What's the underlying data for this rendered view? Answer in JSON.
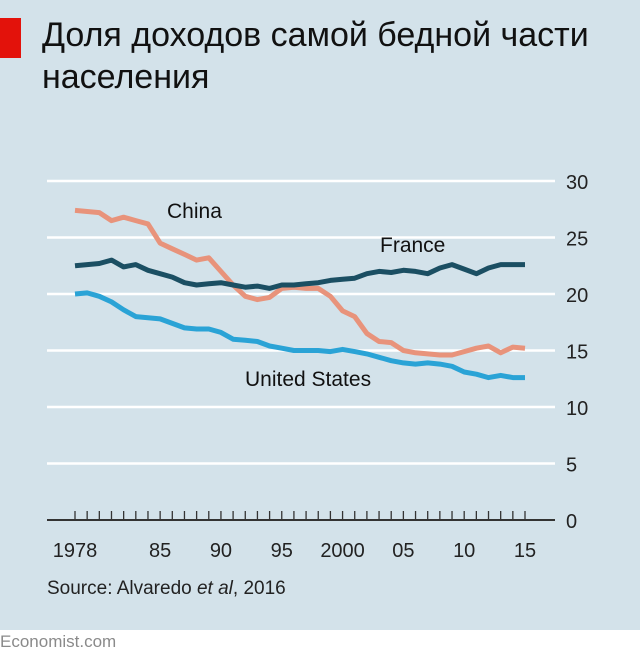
{
  "title": "Доля доходов самой бедной части населения",
  "source": {
    "prefix": "Source: Alvaredo ",
    "italic": "et al",
    "suffix": ", 2016"
  },
  "footer": "Economist.com",
  "colors": {
    "background": "#d3e2ea",
    "accent_red": "#e3120b",
    "china": "#e8937b",
    "france": "#1b4f63",
    "us": "#2aa3d6",
    "grid": "#ffffff",
    "axis": "#333333"
  },
  "chart_data": {
    "type": "line",
    "ylim": [
      0,
      30
    ],
    "xlim": [
      1978,
      2015
    ],
    "y_ticks": [
      {
        "value": 0,
        "label": "0"
      },
      {
        "value": 5,
        "label": "5"
      },
      {
        "value": 10,
        "label": "10"
      },
      {
        "value": 15,
        "label": "15"
      },
      {
        "value": 20,
        "label": "20"
      },
      {
        "value": 25,
        "label": "25"
      },
      {
        "value": 30,
        "label": "30"
      }
    ],
    "x_ticks": [
      {
        "value": 1978,
        "label": "1978"
      },
      {
        "value": 1985,
        "label": "85"
      },
      {
        "value": 1990,
        "label": "90"
      },
      {
        "value": 1995,
        "label": "95"
      },
      {
        "value": 2000,
        "label": "2000"
      },
      {
        "value": 2005,
        "label": "05"
      },
      {
        "value": 2010,
        "label": "10"
      },
      {
        "value": 2015,
        "label": "15"
      }
    ],
    "series": [
      {
        "name": "China",
        "color": "#e8937b",
        "x": [
          1978,
          1979,
          1980,
          1981,
          1982,
          1983,
          1984,
          1985,
          1986,
          1987,
          1988,
          1989,
          1990,
          1991,
          1992,
          1993,
          1994,
          1995,
          1996,
          1997,
          1998,
          1999,
          2000,
          2001,
          2002,
          2003,
          2004,
          2005,
          2006,
          2007,
          2008,
          2009,
          2010,
          2011,
          2012,
          2013,
          2014,
          2015
        ],
        "values": [
          27.4,
          27.3,
          27.2,
          26.5,
          26.8,
          26.5,
          26.2,
          24.5,
          24.0,
          23.5,
          23.0,
          23.2,
          22.0,
          20.8,
          19.8,
          19.5,
          19.7,
          20.5,
          20.6,
          20.5,
          20.5,
          19.8,
          18.5,
          18.0,
          16.5,
          15.8,
          15.7,
          15.0,
          14.8,
          14.7,
          14.6,
          14.6,
          14.9,
          15.2,
          15.4,
          14.8,
          15.3,
          15.2
        ]
      },
      {
        "name": "France",
        "color": "#1b4f63",
        "x": [
          1978,
          1979,
          1980,
          1981,
          1982,
          1983,
          1984,
          1985,
          1986,
          1987,
          1988,
          1989,
          1990,
          1991,
          1992,
          1993,
          1994,
          1995,
          1996,
          1997,
          1998,
          1999,
          2000,
          2001,
          2002,
          2003,
          2004,
          2005,
          2006,
          2007,
          2008,
          2009,
          2010,
          2011,
          2012,
          2013,
          2014,
          2015
        ],
        "values": [
          22.5,
          22.6,
          22.7,
          23.0,
          22.4,
          22.6,
          22.1,
          21.8,
          21.5,
          21.0,
          20.8,
          20.9,
          21.0,
          20.8,
          20.6,
          20.7,
          20.5,
          20.8,
          20.8,
          20.9,
          21.0,
          21.2,
          21.3,
          21.4,
          21.8,
          22.0,
          21.9,
          22.1,
          22.0,
          21.8,
          22.3,
          22.6,
          22.2,
          21.8,
          22.3,
          22.6,
          22.6,
          22.6
        ]
      },
      {
        "name": "United States",
        "color": "#2aa3d6",
        "x": [
          1978,
          1979,
          1980,
          1981,
          1982,
          1983,
          1984,
          1985,
          1986,
          1987,
          1988,
          1989,
          1990,
          1991,
          1992,
          1993,
          1994,
          1995,
          1996,
          1997,
          1998,
          1999,
          2000,
          2001,
          2002,
          2003,
          2004,
          2005,
          2006,
          2007,
          2008,
          2009,
          2010,
          2011,
          2012,
          2013,
          2014,
          2015
        ],
        "values": [
          20.0,
          20.1,
          19.8,
          19.3,
          18.6,
          18.0,
          17.9,
          17.8,
          17.4,
          17.0,
          16.9,
          16.9,
          16.6,
          16.0,
          15.9,
          15.8,
          15.4,
          15.2,
          15.0,
          15.0,
          15.0,
          14.9,
          15.1,
          14.9,
          14.7,
          14.4,
          14.1,
          13.9,
          13.8,
          13.9,
          13.8,
          13.6,
          13.1,
          12.9,
          12.6,
          12.8,
          12.6,
          12.6
        ]
      }
    ],
    "annotations": [
      {
        "series": "China",
        "text": "China"
      },
      {
        "series": "France",
        "text": "France"
      },
      {
        "series": "United States",
        "text": "United States"
      }
    ]
  }
}
